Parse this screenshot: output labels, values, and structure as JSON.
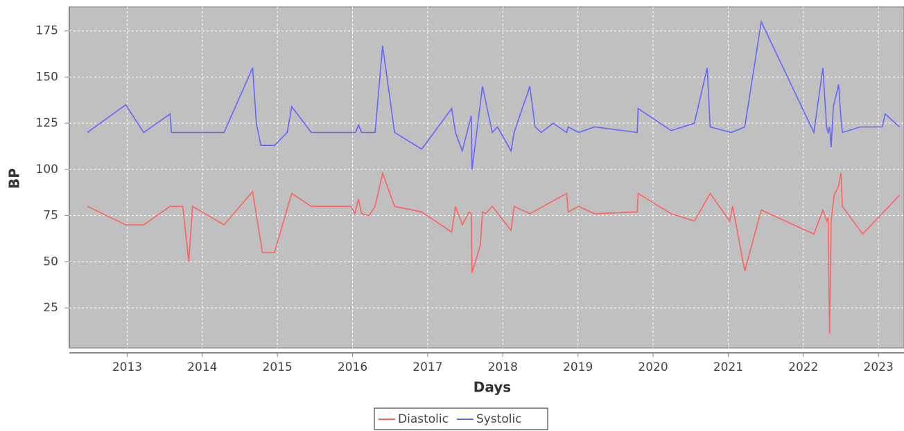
{
  "chart_data": {
    "type": "line",
    "x_label": "Days",
    "y_label": "BP",
    "xlim": [
      2012.23,
      2023.34
    ],
    "ylim": [
      3.3,
      188
    ],
    "xticks": [
      2013,
      2014,
      2015,
      2016,
      2017,
      2018,
      2019,
      2020,
      2021,
      2022,
      2023
    ],
    "yticks": [
      25,
      50,
      75,
      100,
      125,
      150,
      175
    ],
    "grid": true,
    "legend": "bottom",
    "series": [
      {
        "name": "Diastolic",
        "color": "#ff6060",
        "x": [
          2012.47,
          2012.98,
          2013.22,
          2013.57,
          2013.74,
          2013.82,
          2013.87,
          2014.29,
          2014.67,
          2014.8,
          2014.96,
          2015.19,
          2015.45,
          2015.98,
          2016.03,
          2016.08,
          2016.12,
          2016.22,
          2016.3,
          2016.4,
          2016.56,
          2016.92,
          2017.32,
          2017.37,
          2017.46,
          2017.55,
          2017.58,
          2017.59,
          2017.7,
          2017.73,
          2017.77,
          2017.86,
          2018.11,
          2018.15,
          2018.36,
          2018.67,
          2018.85,
          2018.87,
          2019.01,
          2019.22,
          2019.79,
          2019.8,
          2020.24,
          2020.55,
          2020.76,
          2021.02,
          2021.06,
          2021.22,
          2021.44,
          2022.14,
          2022.26,
          2022.31,
          2022.33,
          2022.35,
          2022.37,
          2022.41,
          2022.47,
          2022.5,
          2022.52,
          2022.79,
          2023.28
        ],
        "values": [
          80,
          70,
          70,
          80,
          80,
          50,
          80,
          70,
          88,
          55,
          55,
          87,
          80,
          80,
          76,
          84,
          76,
          75,
          80,
          98,
          80,
          77,
          66,
          80,
          70,
          77,
          76,
          44,
          59,
          77,
          76,
          80,
          67,
          80,
          76,
          83,
          87,
          77,
          80,
          76,
          77,
          87,
          76,
          72,
          87,
          72,
          80,
          45,
          78,
          65,
          78,
          72,
          74,
          11,
          72,
          86,
          91,
          98,
          80,
          65,
          86
        ]
      },
      {
        "name": "Systolic",
        "color": "#6464ff",
        "x": [
          2012.47,
          2012.98,
          2013.22,
          2013.57,
          2013.59,
          2014.29,
          2014.67,
          2014.72,
          2014.78,
          2014.96,
          2015.13,
          2015.19,
          2015.45,
          2016.04,
          2016.08,
          2016.12,
          2016.3,
          2016.4,
          2016.56,
          2016.92,
          2017.32,
          2017.37,
          2017.46,
          2017.58,
          2017.59,
          2017.73,
          2017.86,
          2017.93,
          2018.11,
          2018.15,
          2018.36,
          2018.43,
          2018.51,
          2018.67,
          2018.85,
          2018.87,
          2019.01,
          2019.22,
          2019.79,
          2019.8,
          2020.24,
          2020.55,
          2020.72,
          2020.76,
          2021.04,
          2021.22,
          2021.44,
          2022.14,
          2022.26,
          2022.31,
          2022.33,
          2022.35,
          2022.37,
          2022.4,
          2022.47,
          2022.5,
          2022.52,
          2022.76,
          2023.05,
          2023.09,
          2023.28
        ],
        "values": [
          120,
          135,
          120,
          130,
          120,
          120,
          155,
          125,
          113,
          113,
          120,
          134,
          120,
          120,
          124,
          120,
          120,
          167,
          120,
          111,
          133,
          120,
          110,
          129,
          100,
          145,
          120,
          123,
          110,
          120,
          145,
          123,
          120,
          125,
          120,
          123,
          120,
          123,
          120,
          133,
          121,
          125,
          155,
          123,
          120,
          123,
          180,
          120,
          155,
          123,
          120,
          123,
          112,
          134,
          146,
          128,
          120,
          123,
          123,
          130,
          123
        ]
      }
    ]
  }
}
